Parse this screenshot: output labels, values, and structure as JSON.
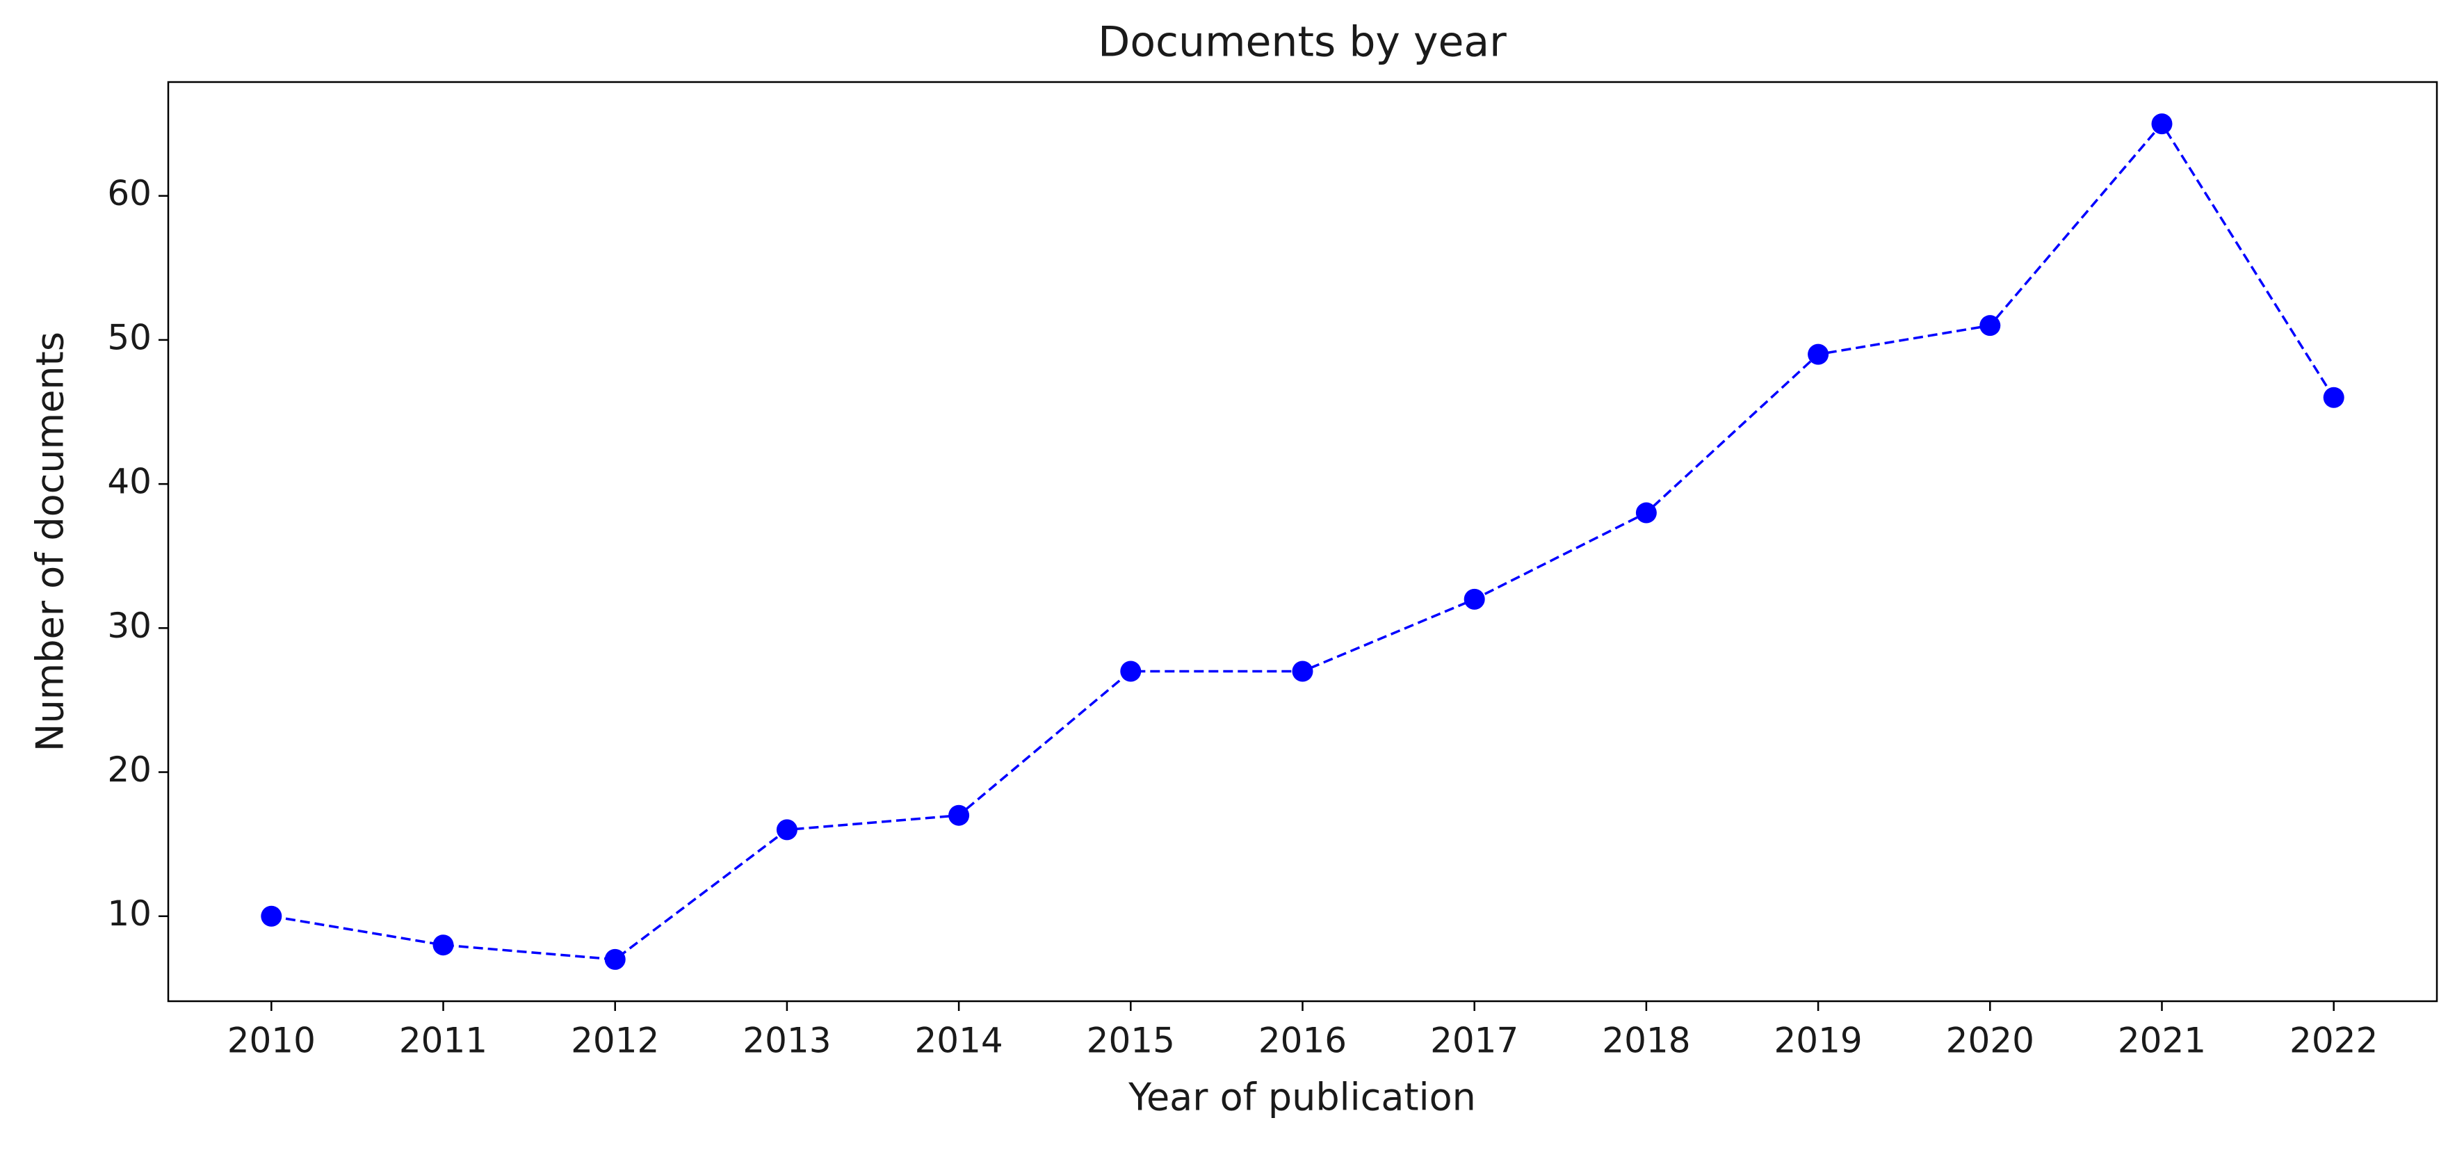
{
  "chart_data": {
    "type": "line",
    "title": "Documents by year",
    "x_label": "Year of publication",
    "y_label": "Number of documents",
    "x": [
      2010,
      2011,
      2012,
      2013,
      2014,
      2015,
      2016,
      2017,
      2018,
      2019,
      2020,
      2021,
      2022
    ],
    "values": [
      10,
      8,
      7,
      16,
      17,
      27,
      27,
      32,
      38,
      49,
      51,
      65,
      46
    ],
    "color": "#0000ff",
    "line_style": "dashed",
    "markers": true,
    "xlim": [
      2009.4,
      2022.6
    ],
    "xticks": [
      2010,
      2011,
      2012,
      2013,
      2014,
      2015,
      2016,
      2017,
      2018,
      2019,
      2020,
      2021,
      2022
    ],
    "ylim": [
      4.1,
      67.9
    ],
    "yticks": [
      10,
      20,
      30,
      40,
      50,
      60
    ],
    "grid": false
  }
}
